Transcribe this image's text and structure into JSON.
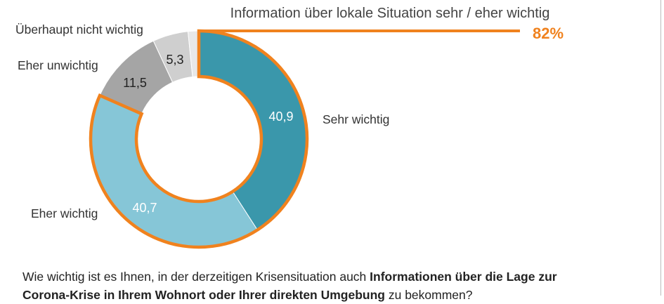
{
  "chart_data": {
    "type": "pie",
    "variant": "donut",
    "slices": [
      {
        "label": "Sehr wichtig",
        "value": 40.9,
        "value_label": "40,9",
        "color": "#3a97ab"
      },
      {
        "label": "Eher wichtig",
        "value": 40.7,
        "value_label": "40,7",
        "color": "#86c6d7"
      },
      {
        "label": "Eher unwichtig",
        "value": 11.5,
        "value_label": "11,5",
        "color": "#a5a5a5"
      },
      {
        "label": "Überhaupt nicht wichtig",
        "value": 5.3,
        "value_label": "5,3",
        "color": "#cfcfcf"
      },
      {
        "label": "",
        "value": 1.6,
        "value_label": "",
        "color": "#e8e8e8"
      }
    ],
    "annotation": {
      "text": "Information über lokale Situation sehr / eher wichtig",
      "value": "82%",
      "color": "#f0821e"
    }
  },
  "question": {
    "part1": "Wie wichtig ist es Ihnen, in der derzeitigen Krisensituation auch ",
    "bold": "Informationen über die Lage zur Corona-Krise in Ihrem Wohnort oder Ihrer direkten Umgebung",
    "part2": " zu bekommen?"
  }
}
